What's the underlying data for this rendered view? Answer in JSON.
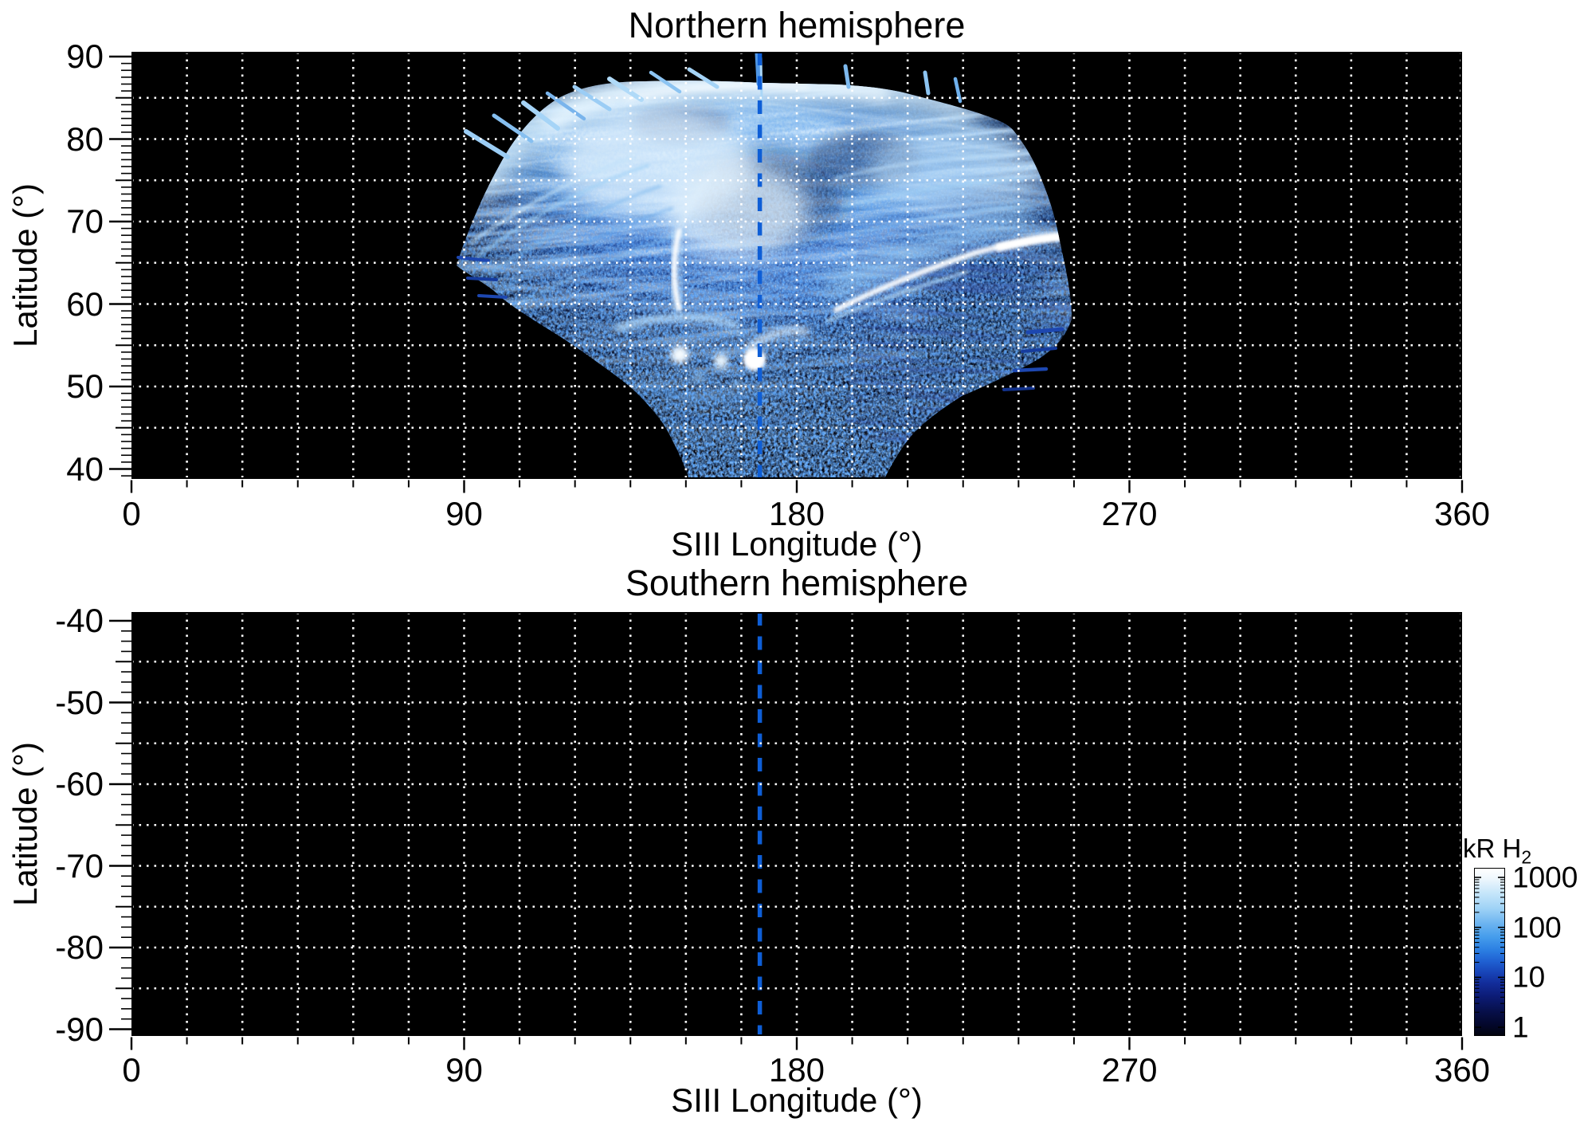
{
  "north": {
    "title": "Northern hemisphere",
    "xlabel": "SIII Longitude (°)",
    "ylabel": "Latitude (°)",
    "xtick_labels": [
      "0",
      "90",
      "180",
      "270",
      "360"
    ],
    "ytick_labels": [
      "90",
      "80",
      "70",
      "60",
      "50",
      "40"
    ],
    "marker_longitude_deg": 170
  },
  "south": {
    "title": "Southern hemisphere",
    "xlabel": "SIII Longitude (°)",
    "ylabel": "Latitude (°)",
    "xtick_labels": [
      "0",
      "90",
      "180",
      "270",
      "360"
    ],
    "ytick_labels": [
      "-40",
      "-50",
      "-60",
      "-70",
      "-80",
      "-90"
    ],
    "marker_longitude_deg": 170
  },
  "colorbar": {
    "title_main": "kR H",
    "title_sub": "2",
    "tick_labels": [
      "1000",
      "100",
      "10",
      "1"
    ],
    "scale": "log"
  },
  "colors": {
    "plot_bg": "#000000",
    "grid": "#ffffff",
    "marker_line": "#0e5ed6",
    "text": "#000000",
    "colormap": [
      "#02030e",
      "#0c1b74",
      "#1e5ed0",
      "#41a0ec",
      "#aedcf8",
      "#ffffff"
    ]
  },
  "chart_data": {
    "type": "heatmap",
    "panels": [
      {
        "title": "Northern hemisphere",
        "xlabel": "SIII Longitude (°)",
        "ylabel": "Latitude (°)",
        "xlim": [
          0,
          360
        ],
        "ylim": [
          40,
          90
        ],
        "xticks": [
          0,
          90,
          180,
          270,
          360
        ],
        "yticks": [
          40,
          50,
          60,
          70,
          80,
          90
        ],
        "grid": "white dotted, every 15 deg longitude and 5 deg latitude",
        "marker_line_longitude_deg": 170,
        "emission": {
          "coverage_longitude_deg": [
            75,
            255
          ],
          "coverage_latitude_deg": [
            39,
            87
          ],
          "units": "kR H2",
          "features": [
            {
              "name": "bright white main-oval arc",
              "longitude_deg": [
                190,
                252
              ],
              "latitude_deg": [
                58,
                68
              ],
              "intensity_kR": 1000
            },
            {
              "name": "bright vertical filament",
              "longitude_deg": [
                146,
                150
              ],
              "latitude_deg": [
                58,
                68
              ],
              "intensity_kR": 800
            },
            {
              "name": "bright compact patches near equatorward edge",
              "longitude_deg": [
                148,
                182
              ],
              "latitude_deg": [
                52,
                56
              ],
              "intensity_kR": 900
            },
            {
              "name": "pale streaked canopy (swath fibers)",
              "longitude_deg": [
                90,
                215
              ],
              "latitude_deg": [
                70,
                86
              ],
              "intensity_kR": 300
            },
            {
              "name": "dark polar void",
              "longitude_deg": [
                150,
                195
              ],
              "latitude_deg": [
                68,
                78
              ],
              "intensity_kR": 20
            },
            {
              "name": "faint speckled equatorward emission",
              "longitude_deg": [
                130,
                215
              ],
              "latitude_deg": [
                39,
                58
              ],
              "intensity_kR": 5
            }
          ]
        }
      },
      {
        "title": "Southern hemisphere",
        "xlabel": "SIII Longitude (°)",
        "ylabel": "Latitude (°)",
        "xlim": [
          0,
          360
        ],
        "ylim": [
          -90,
          -40
        ],
        "xticks": [
          0,
          90,
          180,
          270,
          360
        ],
        "yticks": [
          -90,
          -80,
          -70,
          -60,
          -50,
          -40
        ],
        "grid": "white dotted, every 15 deg longitude and 5 deg latitude",
        "marker_line_longitude_deg": 170,
        "emission": null
      }
    ],
    "colorbar": {
      "label": "kR H2",
      "scale": "log",
      "range": [
        1,
        1000
      ],
      "ticks": [
        1,
        10,
        100,
        1000
      ],
      "legend_position": "bottom-right"
    }
  }
}
